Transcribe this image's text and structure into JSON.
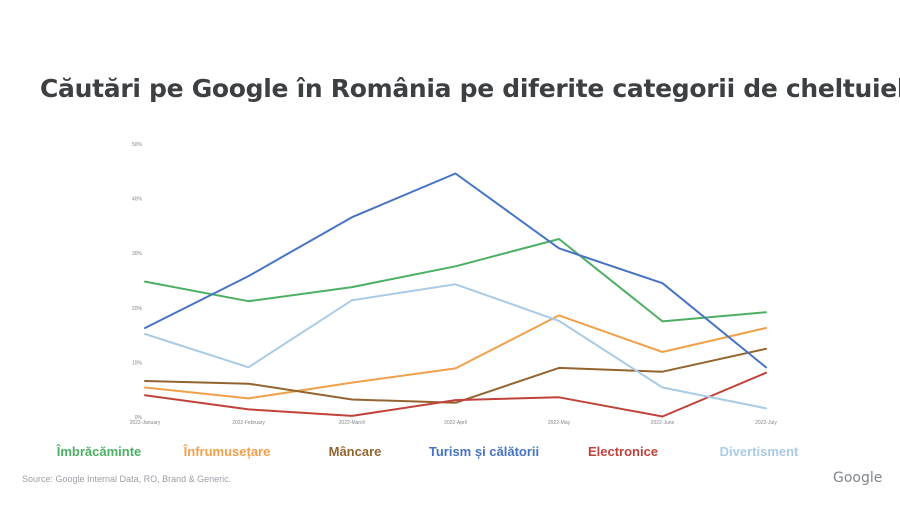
{
  "title": "Căutări pe Google în România pe diferite categorii de cheltuieli",
  "source": "Source: Google Internal Data, RO, Brand & Generic.",
  "logo_text": "Google",
  "chart_data": {
    "type": "line",
    "title": "Căutări pe Google în România pe diferite categorii de cheltuieli",
    "xlabel": "",
    "ylabel": "",
    "categories": [
      "2022-January",
      "2022-February",
      "2022-March",
      "2022-April",
      "2022-May",
      "2022-June",
      "2022-July"
    ],
    "ylim": [
      0,
      50
    ],
    "yticks": [
      0,
      10,
      20,
      30,
      40,
      50
    ],
    "ytick_labels": [
      "0%",
      "10%",
      "20%",
      "30%",
      "40%",
      "50%"
    ],
    "grid": false,
    "legend_position": "bottom",
    "series": [
      {
        "name": "Îmbrăcăminte",
        "color": "#4caf63",
        "values": [
          24.8,
          21.2,
          23.8,
          27.6,
          32.6,
          17.5,
          19.2
        ]
      },
      {
        "name": "Înfrumusețare",
        "color": "#f0a04b",
        "values": [
          5.4,
          3.4,
          6.3,
          8.9,
          18.6,
          11.9,
          16.3
        ]
      },
      {
        "name": "Mâncare",
        "color": "#94642f",
        "values": [
          6.6,
          6.1,
          3.2,
          2.6,
          9.0,
          8.3,
          12.5
        ]
      },
      {
        "name": "Turism și călătorii",
        "color": "#4674c4",
        "values": [
          16.3,
          25.8,
          36.6,
          44.6,
          30.9,
          24.5,
          9.1
        ]
      },
      {
        "name": "Electronice",
        "color": "#c0433b",
        "values": [
          4.0,
          1.4,
          0.2,
          3.1,
          3.6,
          0.1,
          8.1
        ]
      },
      {
        "name": "Divertisment",
        "color": "#a9cbe6",
        "values": [
          15.2,
          9.1,
          21.4,
          24.3,
          17.6,
          5.4,
          1.6
        ]
      }
    ]
  }
}
